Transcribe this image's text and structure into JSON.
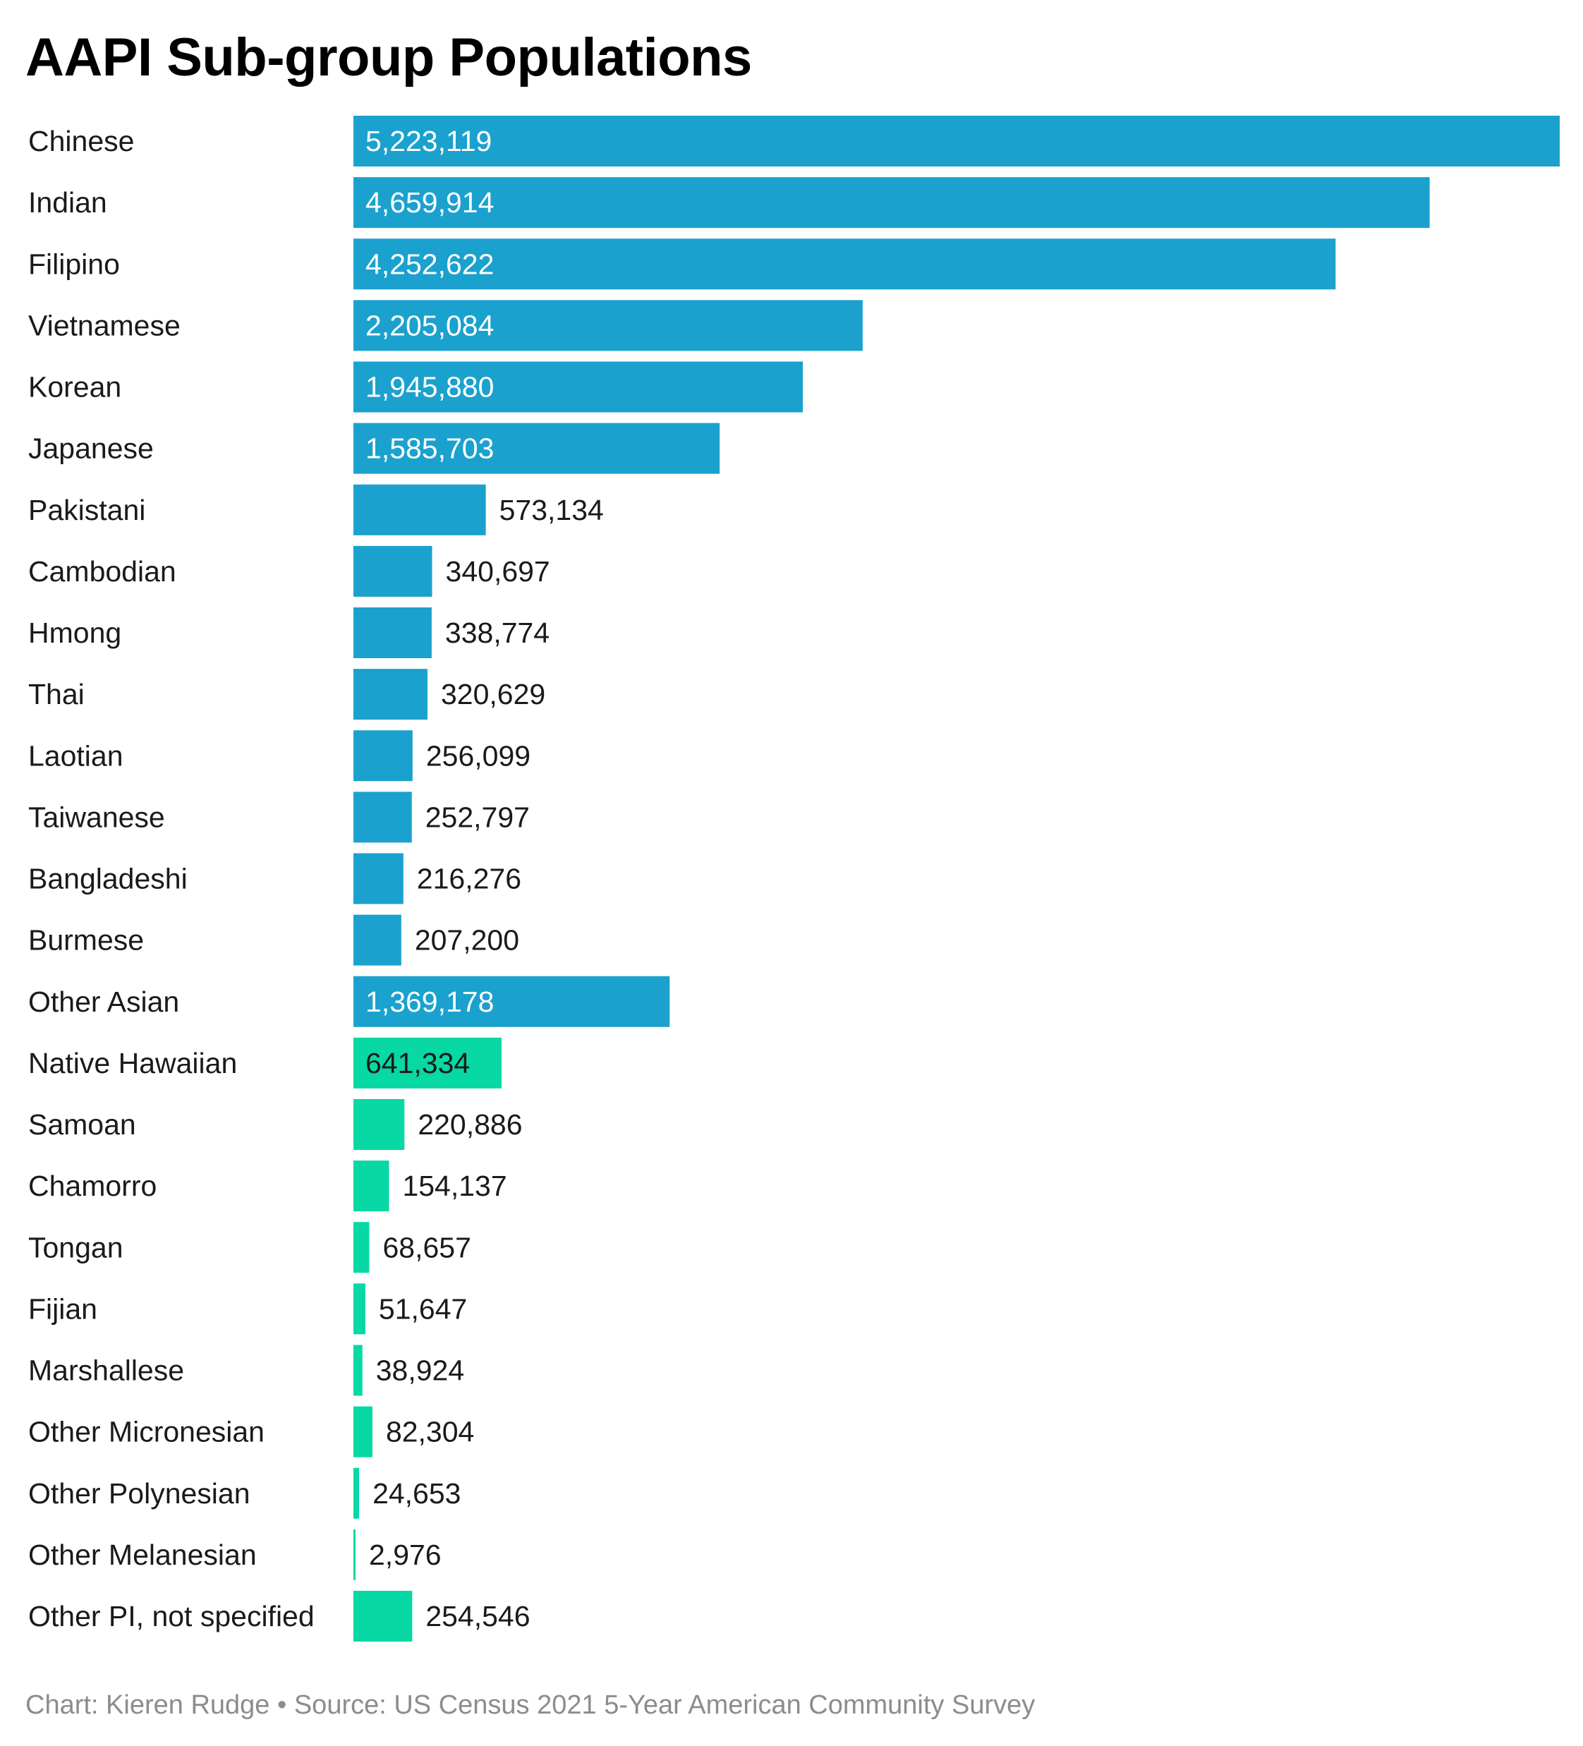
{
  "chart_data": {
    "type": "bar",
    "orientation": "horizontal",
    "title": "AAPI Sub-group Populations",
    "categories": [
      "Chinese",
      "Indian",
      "Filipino",
      "Vietnamese",
      "Korean",
      "Japanese",
      "Pakistani",
      "Cambodian",
      "Hmong",
      "Thai",
      "Laotian",
      "Taiwanese",
      "Bangladeshi",
      "Burmese",
      "Other Asian",
      "Native Hawaiian",
      "Samoan",
      "Chamorro",
      "Tongan",
      "Fijian",
      "Marshallese",
      "Other Micronesian",
      "Other Polynesian",
      "Other Melanesian",
      "Other PI, not specified"
    ],
    "values": [
      5223119,
      4659914,
      4252622,
      2205084,
      1945880,
      1585703,
      573134,
      340697,
      338774,
      320629,
      256099,
      252797,
      216276,
      207200,
      1369178,
      641334,
      220886,
      154137,
      68657,
      51647,
      38924,
      82304,
      24653,
      2976,
      254546
    ],
    "value_labels": [
      "5,223,119",
      "4,659,914",
      "4,252,622",
      "2,205,084",
      "1,945,880",
      "1,585,703",
      "573,134",
      "340,697",
      "338,774",
      "320,629",
      "256,099",
      "252,797",
      "216,276",
      "207,200",
      "1,369,178",
      "641,334",
      "220,886",
      "154,137",
      "68,657",
      "51,647",
      "38,924",
      "82,304",
      "24,653",
      "2,976",
      "254,546"
    ],
    "groups": [
      "asian",
      "asian",
      "asian",
      "asian",
      "asian",
      "asian",
      "asian",
      "asian",
      "asian",
      "asian",
      "asian",
      "asian",
      "asian",
      "asian",
      "asian",
      "pacific",
      "pacific",
      "pacific",
      "pacific",
      "pacific",
      "pacific",
      "pacific",
      "pacific",
      "pacific",
      "pacific"
    ],
    "colors": {
      "asian": "#1ba1ce",
      "pacific": "#07d8a4"
    },
    "xlim": [
      0,
      5223119
    ],
    "grid": false,
    "legend": "none",
    "xlabel": "",
    "ylabel": ""
  },
  "footer": "Chart: Kieren Rudge • Source: US Census 2021 5-Year American Community Survey"
}
